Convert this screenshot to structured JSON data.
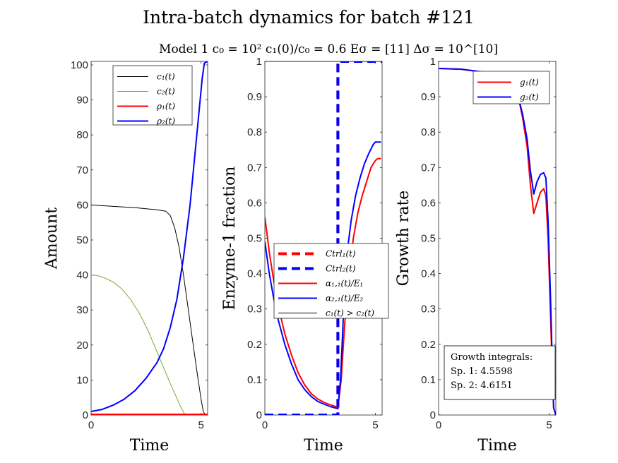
{
  "figure": {
    "title": "Intra-batch dynamics for batch #121",
    "subtitle": "Model 1    c₀ = 10²    c₁(0)/c₀ = 0.6    Eσ = [11]    Δσ = 10^[10]"
  },
  "chart_data": [
    {
      "type": "line",
      "xlabel": "Time",
      "ylabel": "Amount",
      "xlim": [
        0,
        5.3
      ],
      "ylim": [
        0,
        101
      ],
      "xticks": [
        0,
        5
      ],
      "yticks": [
        0,
        10,
        20,
        30,
        40,
        50,
        60,
        70,
        80,
        90,
        100
      ],
      "legend": {
        "placement": "top-right"
      },
      "series": [
        {
          "name": "c₁(t)",
          "color": "#000000",
          "width": 1,
          "dash": "",
          "points": [
            [
              0,
              60
            ],
            [
              1,
              59.6
            ],
            [
              2,
              59.2
            ],
            [
              3,
              58.6
            ],
            [
              3.4,
              58.2
            ],
            [
              3.6,
              57
            ],
            [
              3.8,
              53.5
            ],
            [
              4,
              48
            ],
            [
              4.2,
              40
            ],
            [
              4.4,
              31
            ],
            [
              4.6,
              22
            ],
            [
              4.8,
              13
            ],
            [
              5,
              4.5
            ],
            [
              5.1,
              1
            ],
            [
              5.2,
              0
            ]
          ]
        },
        {
          "name": "c₂(t)",
          "color": "#77ac30",
          "width": 1,
          "dash": "",
          "points": [
            [
              0,
              40
            ],
            [
              0.3,
              39.8
            ],
            [
              0.6,
              39.2
            ],
            [
              1,
              38
            ],
            [
              1.4,
              36
            ],
            [
              1.8,
              33
            ],
            [
              2.2,
              29
            ],
            [
              2.6,
              24
            ],
            [
              3,
              18
            ],
            [
              3.3,
              13.5
            ],
            [
              3.6,
              9
            ],
            [
              3.9,
              4.8
            ],
            [
              4.1,
              2
            ],
            [
              4.25,
              0.3
            ],
            [
              4.3,
              0
            ]
          ]
        },
        {
          "name": "ρ₁(t)",
          "color": "#ff0000",
          "width": 2,
          "dash": "",
          "points": [
            [
              0,
              0.2
            ],
            [
              5.3,
              0.2
            ]
          ]
        },
        {
          "name": "ρ₂(t)",
          "color": "#0000ff",
          "width": 2,
          "dash": "",
          "points": [
            [
              0,
              1
            ],
            [
              0.5,
              1.6
            ],
            [
              1,
              2.8
            ],
            [
              1.5,
              4.5
            ],
            [
              2,
              7
            ],
            [
              2.5,
              10.5
            ],
            [
              3,
              15
            ],
            [
              3.3,
              19
            ],
            [
              3.6,
              25
            ],
            [
              3.9,
              33
            ],
            [
              4.2,
              45
            ],
            [
              4.5,
              60
            ],
            [
              4.7,
              73
            ],
            [
              4.9,
              86
            ],
            [
              5.05,
              96
            ],
            [
              5.15,
              100.5
            ],
            [
              5.3,
              101
            ]
          ]
        }
      ]
    },
    {
      "type": "line",
      "xlabel": "Time",
      "ylabel": "Enzyme-1 fraction",
      "xlim": [
        0,
        5.3
      ],
      "ylim": [
        0,
        1
      ],
      "xticks": [
        0,
        5
      ],
      "yticks": [
        0,
        0.1,
        0.2,
        0.3,
        0.4,
        0.5,
        0.6,
        0.7,
        0.8,
        0.9,
        1
      ],
      "legend": {
        "placement": "center"
      },
      "series": [
        {
          "name": "Ctrl₁(t)",
          "color": "#ff0000",
          "width": 4,
          "dash": "12,7",
          "points": [
            [
              0,
              0
            ],
            [
              3.3,
              0
            ],
            [
              3.3,
              1
            ],
            [
              5.3,
              1
            ]
          ]
        },
        {
          "name": "Ctrl₂(t)",
          "color": "#0000ff",
          "width": 4,
          "dash": "12,7",
          "points": [
            [
              0,
              0
            ],
            [
              3.3,
              0
            ],
            [
              3.3,
              1
            ],
            [
              5.3,
              1
            ]
          ]
        },
        {
          "name": "α₁,₁(t)/E₁",
          "color": "#ff0000",
          "width": 2,
          "dash": "",
          "points": [
            [
              0,
              0.56
            ],
            [
              0.2,
              0.46
            ],
            [
              0.4,
              0.38
            ],
            [
              0.6,
              0.31
            ],
            [
              0.9,
              0.23
            ],
            [
              1.2,
              0.17
            ],
            [
              1.5,
              0.12
            ],
            [
              1.8,
              0.085
            ],
            [
              2.1,
              0.06
            ],
            [
              2.4,
              0.045
            ],
            [
              2.7,
              0.035
            ],
            [
              3,
              0.028
            ],
            [
              3.3,
              0.022
            ],
            [
              3.45,
              0.1
            ],
            [
              3.6,
              0.25
            ],
            [
              3.8,
              0.4
            ],
            [
              4,
              0.5
            ],
            [
              4.2,
              0.57
            ],
            [
              4.4,
              0.62
            ],
            [
              4.6,
              0.66
            ],
            [
              4.8,
              0.7
            ],
            [
              5,
              0.72
            ],
            [
              5.1,
              0.725
            ],
            [
              5.25,
              0.725
            ]
          ]
        },
        {
          "name": "α₂,₁(t)/E₂",
          "color": "#0000ff",
          "width": 2,
          "dash": "",
          "points": [
            [
              0,
              0.49
            ],
            [
              0.2,
              0.4
            ],
            [
              0.4,
              0.33
            ],
            [
              0.6,
              0.27
            ],
            [
              0.9,
              0.2
            ],
            [
              1.2,
              0.145
            ],
            [
              1.5,
              0.1
            ],
            [
              1.8,
              0.072
            ],
            [
              2.1,
              0.052
            ],
            [
              2.4,
              0.038
            ],
            [
              2.7,
              0.03
            ],
            [
              3,
              0.023
            ],
            [
              3.3,
              0.018
            ],
            [
              3.42,
              0.1
            ],
            [
              3.55,
              0.28
            ],
            [
              3.7,
              0.45
            ],
            [
              3.9,
              0.55
            ],
            [
              4.1,
              0.62
            ],
            [
              4.3,
              0.67
            ],
            [
              4.5,
              0.71
            ],
            [
              4.7,
              0.74
            ],
            [
              4.9,
              0.765
            ],
            [
              5,
              0.772
            ],
            [
              5.25,
              0.772
            ]
          ]
        },
        {
          "name": "c₁(t) > c₂(t)",
          "color": "#000000",
          "width": 1,
          "dash": "",
          "points": [
            [
              0,
              1
            ],
            [
              5.3,
              1
            ]
          ]
        }
      ]
    },
    {
      "type": "line",
      "xlabel": "Time",
      "ylabel": "Growth rate",
      "xlim": [
        0,
        5.3
      ],
      "ylim": [
        0,
        1
      ],
      "xticks": [
        0,
        5
      ],
      "yticks": [
        0,
        0.1,
        0.2,
        0.3,
        0.4,
        0.5,
        0.6,
        0.7,
        0.8,
        0.9,
        1
      ],
      "legend": {
        "placement": "top-right"
      },
      "annotation": {
        "title": "Growth integrals:",
        "lines": [
          "Sp. 1: 4.5598",
          "Sp. 2: 4.6151"
        ]
      },
      "series": [
        {
          "name": "g₁(t)",
          "color": "#ff0000",
          "width": 2,
          "dash": "",
          "points": [
            [
              0,
              0.98
            ],
            [
              1,
              0.978
            ],
            [
              2,
              0.97
            ],
            [
              2.5,
              0.965
            ],
            [
              3,
              0.955
            ],
            [
              3.3,
              0.94
            ],
            [
              3.6,
              0.9
            ],
            [
              3.8,
              0.84
            ],
            [
              4,
              0.76
            ],
            [
              4.15,
              0.65
            ],
            [
              4.3,
              0.57
            ],
            [
              4.45,
              0.6
            ],
            [
              4.6,
              0.63
            ],
            [
              4.75,
              0.64
            ],
            [
              4.85,
              0.62
            ],
            [
              4.95,
              0.5
            ],
            [
              5.05,
              0.3
            ],
            [
              5.15,
              0.1
            ],
            [
              5.2,
              0.02
            ],
            [
              5.3,
              0
            ]
          ]
        },
        {
          "name": "g₂(t)",
          "color": "#0000ff",
          "width": 2,
          "dash": "",
          "points": [
            [
              0,
              0.98
            ],
            [
              1,
              0.978
            ],
            [
              2,
              0.97
            ],
            [
              2.5,
              0.965
            ],
            [
              3,
              0.955
            ],
            [
              3.3,
              0.94
            ],
            [
              3.6,
              0.9
            ],
            [
              3.8,
              0.85
            ],
            [
              4,
              0.78
            ],
            [
              4.15,
              0.69
            ],
            [
              4.3,
              0.625
            ],
            [
              4.45,
              0.66
            ],
            [
              4.6,
              0.68
            ],
            [
              4.75,
              0.685
            ],
            [
              4.85,
              0.67
            ],
            [
              4.95,
              0.55
            ],
            [
              5.05,
              0.35
            ],
            [
              5.15,
              0.12
            ],
            [
              5.2,
              0.02
            ],
            [
              5.3,
              0
            ]
          ]
        }
      ]
    }
  ]
}
